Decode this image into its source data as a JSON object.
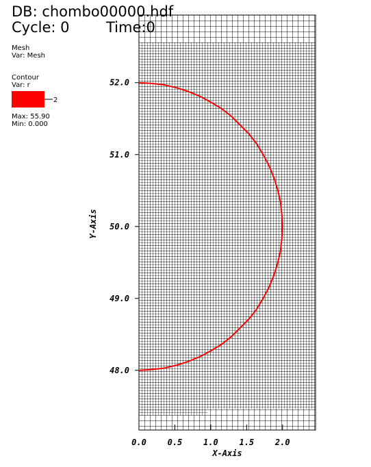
{
  "chart_data": {
    "type": "contour",
    "db_label": "DB: chombo00000.hdf",
    "cycle_label": "Cycle: 0",
    "time_label": "Time:0",
    "mesh_legend": {
      "title": "Mesh",
      "var": "Var: Mesh"
    },
    "contour_legend": {
      "title": "Contour",
      "var": "Var: r",
      "level": "2",
      "max": "Max:  55.90",
      "min": "Min:  0.000"
    },
    "xlabel": "X-Axis",
    "ylabel": "Y-Axis",
    "xlim": [
      0,
      2.46
    ],
    "ylim": [
      47.17,
      52.94
    ],
    "xticks": [
      {
        "value": 0,
        "label": "0.0"
      },
      {
        "value": 0.5,
        "label": "0.5"
      },
      {
        "value": 1,
        "label": "1.0"
      },
      {
        "value": 1.5,
        "label": "1.5"
      },
      {
        "value": 2,
        "label": "2.0"
      }
    ],
    "yticks": [
      {
        "value": 48,
        "label": "48.0"
      },
      {
        "value": 49,
        "label": "49.0"
      },
      {
        "value": 50,
        "label": "50.0"
      },
      {
        "value": 51,
        "label": "51.0"
      },
      {
        "value": 52,
        "label": "52.0"
      }
    ],
    "series": [
      {
        "name": "2",
        "color": "#ff0000",
        "x": [
          0,
          0.17,
          0.35,
          0.52,
          0.68,
          0.85,
          1.0,
          1.15,
          1.29,
          1.41,
          1.53,
          1.64,
          1.73,
          1.81,
          1.88,
          1.93,
          1.97,
          1.99,
          2.0,
          1.99,
          1.97,
          1.93,
          1.88,
          1.81,
          1.73,
          1.64,
          1.53,
          1.41,
          1.29,
          1.15,
          1.0,
          0.85,
          0.68,
          0.52,
          0.35,
          0.17,
          0
        ],
        "values": [
          52.0,
          51.99,
          51.97,
          51.93,
          51.88,
          51.81,
          51.73,
          51.64,
          51.53,
          51.41,
          51.29,
          51.15,
          51.0,
          50.85,
          50.68,
          50.52,
          50.35,
          50.17,
          50.0,
          49.83,
          49.65,
          49.48,
          49.32,
          49.15,
          49.0,
          48.85,
          48.71,
          48.59,
          48.47,
          48.36,
          48.27,
          48.19,
          48.12,
          48.07,
          48.03,
          48.01,
          48.0
        ]
      }
    ]
  }
}
